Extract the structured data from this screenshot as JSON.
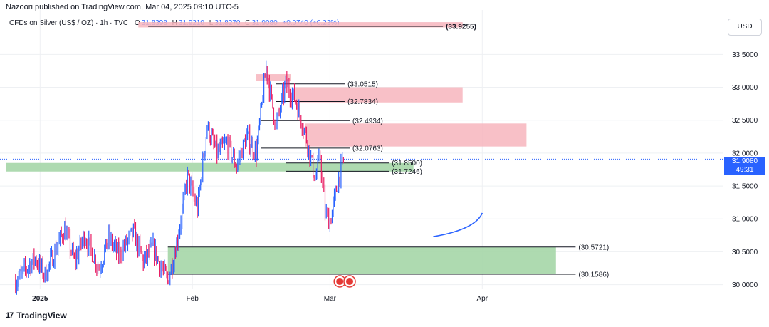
{
  "header": {
    "published": "Nazoori published on TradingView.com, Mar 04, 2025 09:10 UTC-5"
  },
  "legend": {
    "symbol": "CFDs on Silver (US$ / OZ) · 1h · TVC",
    "open_label": "O",
    "open": "31.8398",
    "high_label": "H",
    "high": "31.9210",
    "low_label": "L",
    "low": "31.8270",
    "close_label": "C",
    "close": "31.9080",
    "change": "+0.0740 (+0.23%)"
  },
  "currency_button": "USD",
  "price_tag": {
    "price": "31.9080",
    "countdown": "49:31"
  },
  "brand": {
    "logo": "17",
    "name": "TradingView"
  },
  "colors": {
    "up": "#2962ff",
    "down": "#e91e63",
    "supply_zone": "#f7b5bd",
    "demand_zone": "#a5d6a7",
    "grid": "#eef0f3",
    "axis_text": "#131722",
    "last_price": "#2962ff",
    "projection": "#2962ff",
    "flag": "#e53935"
  },
  "chart_data": {
    "type": "candlestick",
    "timeframe": "1h",
    "ylim": [
      29.92,
      33.98
    ],
    "y_ticks": [
      "33.5000",
      "33.0000",
      "32.5000",
      "32.0000",
      "31.5000",
      "31.0000",
      "30.5000",
      "30.0000"
    ],
    "x_ticks": [
      "2025",
      "Feb",
      "Mar",
      "Apr"
    ],
    "last_price": 31.908,
    "zones": [
      {
        "kind": "supply",
        "top": 33.99,
        "bottom": 33.91,
        "from": "2025-01-21",
        "to": "2025-03-28"
      },
      {
        "kind": "supply",
        "top": 33.2,
        "bottom": 33.1,
        "from": "2025-02-14",
        "to": "2025-02-21"
      },
      {
        "kind": "supply",
        "top": 33.0,
        "bottom": 32.77,
        "from": "2025-02-22",
        "to": "2025-03-28"
      },
      {
        "kind": "supply",
        "top": 32.45,
        "bottom": 32.1,
        "from": "2025-02-24",
        "to": "2025-04-10"
      },
      {
        "kind": "demand",
        "top": 31.85,
        "bottom": 31.72,
        "from": "2024-12-25",
        "to": "2025-03-18"
      },
      {
        "kind": "demand",
        "top": 30.57,
        "bottom": 30.16,
        "from": "2025-01-27",
        "to": "2025-04-16"
      }
    ],
    "levels": [
      {
        "value": 33.9255,
        "label": "(33.9255)",
        "from": "2025-01-23",
        "to": "2025-03-24"
      },
      {
        "value": 33.0515,
        "label": "(33.0515)",
        "from": "2025-02-18",
        "to": "2025-03-04"
      },
      {
        "value": 32.7834,
        "label": "(32.7834)",
        "from": "2025-02-18",
        "to": "2025-03-04"
      },
      {
        "value": 32.4934,
        "label": "(32.4934)",
        "from": "2025-02-15",
        "to": "2025-03-05"
      },
      {
        "value": 32.0763,
        "label": "(32.0763)",
        "from": "2025-02-15",
        "to": "2025-03-05"
      },
      {
        "value": 31.85,
        "label": "(31.8500)",
        "from": "2025-02-20",
        "to": "2025-03-13"
      },
      {
        "value": 31.7246,
        "label": "(31.7246)",
        "from": "2025-02-20",
        "to": "2025-03-13"
      },
      {
        "value": 30.5721,
        "label": "(30.5721)",
        "from": "2025-01-27",
        "to": "2025-04-20"
      },
      {
        "value": 30.1586,
        "label": "(30.1586)",
        "from": "2025-01-27",
        "to": "2025-04-20"
      }
    ],
    "price_path": [
      [
        "2024-12-27",
        30.05
      ],
      [
        "2024-12-31",
        30.4
      ],
      [
        "2025-01-02",
        30.15
      ],
      [
        "2025-01-06",
        30.85
      ],
      [
        "2025-01-08",
        30.35
      ],
      [
        "2025-01-10",
        30.75
      ],
      [
        "2025-01-13",
        30.25
      ],
      [
        "2025-01-15",
        30.7
      ],
      [
        "2025-01-17",
        30.45
      ],
      [
        "2025-01-20",
        30.8
      ],
      [
        "2025-01-22",
        30.35
      ],
      [
        "2025-01-24",
        30.55
      ],
      [
        "2025-01-27",
        30.05
      ],
      [
        "2025-01-29",
        30.7
      ],
      [
        "2025-01-31",
        31.65
      ],
      [
        "2025-02-02",
        31.15
      ],
      [
        "2025-02-04",
        32.4
      ],
      [
        "2025-02-06",
        32.0
      ],
      [
        "2025-02-08",
        32.15
      ],
      [
        "2025-02-10",
        31.8
      ],
      [
        "2025-02-12",
        32.25
      ],
      [
        "2025-02-14",
        32.0
      ],
      [
        "2025-02-16",
        33.3
      ],
      [
        "2025-02-18",
        32.4
      ],
      [
        "2025-02-20",
        33.05
      ],
      [
        "2025-02-22",
        32.8
      ],
      [
        "2025-02-24",
        32.3
      ],
      [
        "2025-02-26",
        31.6
      ],
      [
        "2025-02-27",
        31.95
      ],
      [
        "2025-02-28",
        31.1
      ],
      [
        "2025-03-01",
        30.95
      ],
      [
        "2025-03-03",
        31.7
      ],
      [
        "2025-03-04",
        31.908
      ]
    ],
    "projection": [
      [
        "2025-03-22",
        30.73
      ],
      [
        "2025-03-28",
        30.86
      ],
      [
        "2025-04-01",
        31.09
      ]
    ],
    "events": [
      "2025-03-03",
      "2025-03-05"
    ]
  }
}
